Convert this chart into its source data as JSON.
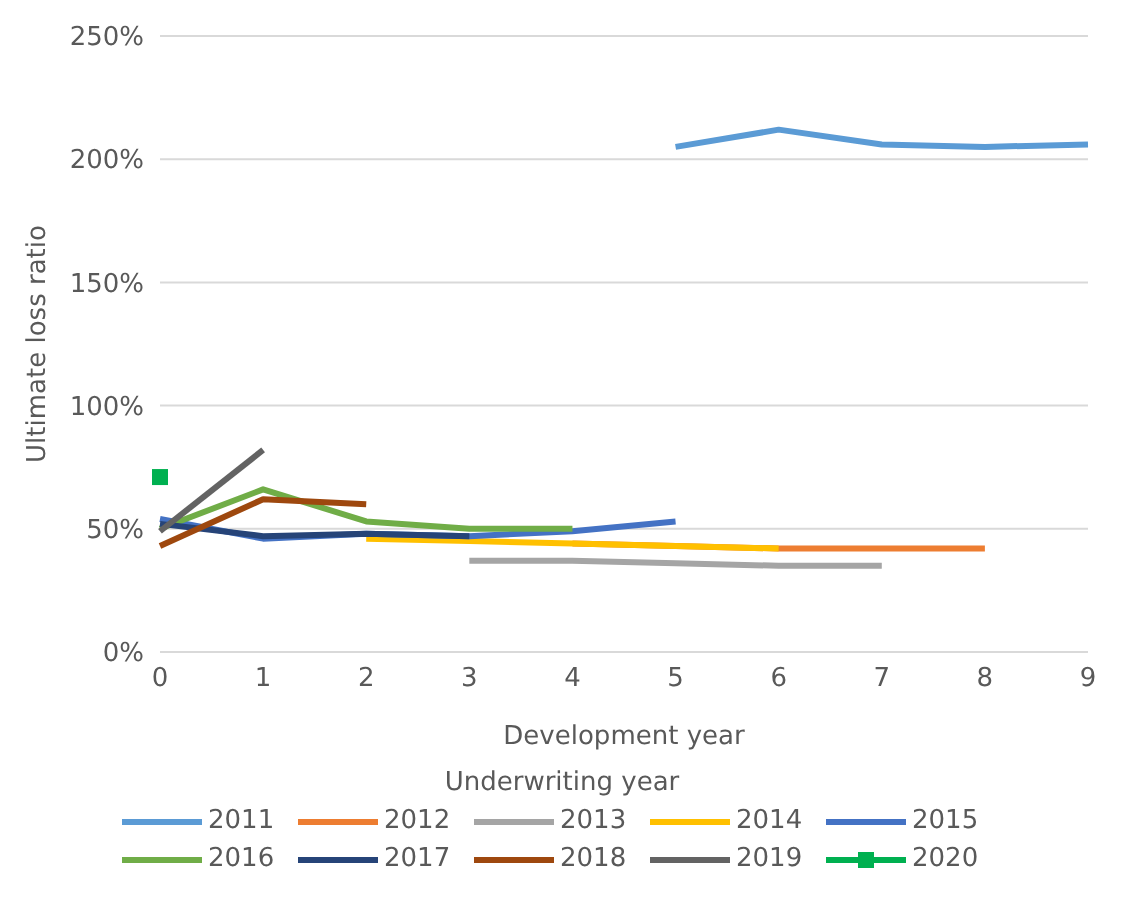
{
  "chart_data": {
    "type": "line",
    "xlabel": "Development year",
    "ylabel": "Ultimate loss ratio",
    "legend_title": "Underwriting year",
    "categories": [
      "0",
      "1",
      "2",
      "3",
      "4",
      "5",
      "6",
      "7",
      "8",
      "9"
    ],
    "ylim": [
      0,
      250
    ],
    "yticks": [
      {
        "value": 0,
        "label": "0%"
      },
      {
        "value": 50,
        "label": "50%"
      },
      {
        "value": 100,
        "label": "100%"
      },
      {
        "value": 150,
        "label": "150%"
      },
      {
        "value": 200,
        "label": "200%"
      },
      {
        "value": 250,
        "label": "250%"
      }
    ],
    "grid": "y",
    "legend": "bottom",
    "marker": "none",
    "line_style": "solid",
    "series": [
      {
        "name": "2011",
        "color": "#5b9bd5",
        "values": [
          null,
          null,
          null,
          null,
          null,
          205,
          212,
          206,
          205,
          206
        ]
      },
      {
        "name": "2012",
        "color": "#ed7d31",
        "values": [
          null,
          null,
          null,
          null,
          44,
          43,
          42,
          42,
          42,
          null
        ]
      },
      {
        "name": "2013",
        "color": "#a5a5a5",
        "values": [
          null,
          null,
          null,
          37,
          37,
          36,
          35,
          35,
          null,
          null
        ]
      },
      {
        "name": "2014",
        "color": "#ffc000",
        "values": [
          null,
          null,
          46,
          45,
          44,
          43,
          42,
          null,
          null,
          null
        ]
      },
      {
        "name": "2015",
        "color": "#4472c4",
        "values": [
          54,
          46,
          48,
          47,
          49,
          53,
          null,
          null,
          null,
          null
        ]
      },
      {
        "name": "2016",
        "color": "#70ad47",
        "values": [
          50,
          66,
          53,
          50,
          50,
          null,
          null,
          null,
          null,
          null
        ]
      },
      {
        "name": "2017",
        "color": "#264478",
        "values": [
          52,
          47,
          48,
          47,
          null,
          null,
          null,
          null,
          null,
          null
        ]
      },
      {
        "name": "2018",
        "color": "#9e480e",
        "values": [
          43,
          62,
          60,
          null,
          null,
          null,
          null,
          null,
          null,
          null
        ]
      },
      {
        "name": "2019",
        "color": "#636363",
        "values": [
          49,
          82,
          null,
          null,
          null,
          null,
          null,
          null,
          null,
          null
        ]
      },
      {
        "name": "2020",
        "color": "#00b050",
        "marker": "square",
        "values": [
          71,
          null,
          null,
          null,
          null,
          null,
          null,
          null,
          null,
          null
        ]
      }
    ]
  }
}
